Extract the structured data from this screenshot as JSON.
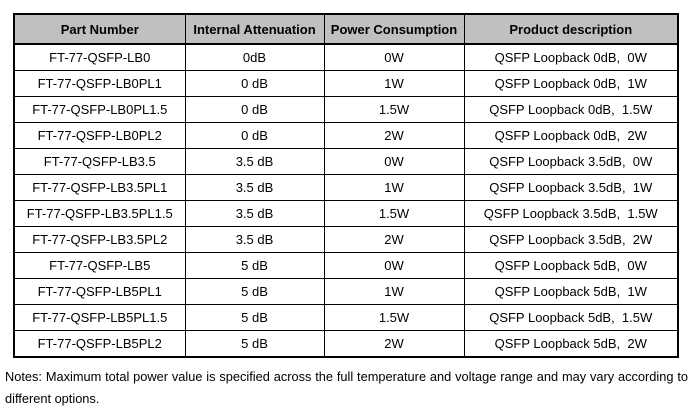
{
  "table": {
    "columns": [
      "Part Number",
      "Internal Attenuation",
      "Power Consumption",
      "Product description"
    ],
    "rows": [
      {
        "part_number": "FT-77-QSFP-LB0",
        "internal_attenuation": "0dB",
        "power_consumption": "0W",
        "description": "QSFP Loopback 0dB，0W"
      },
      {
        "part_number": "FT-77-QSFP-LB0PL1",
        "internal_attenuation": "0 dB",
        "power_consumption": "1W",
        "description": "QSFP Loopback 0dB，1W"
      },
      {
        "part_number": "FT-77-QSFP-LB0PL1.5",
        "internal_attenuation": "0 dB",
        "power_consumption": "1.5W",
        "description": "QSFP Loopback 0dB，1.5W"
      },
      {
        "part_number": "FT-77-QSFP-LB0PL2",
        "internal_attenuation": "0 dB",
        "power_consumption": "2W",
        "description": "QSFP Loopback 0dB，2W"
      },
      {
        "part_number": "FT-77-QSFP-LB3.5",
        "internal_attenuation": "3.5 dB",
        "power_consumption": "0W",
        "description": "QSFP Loopback 3.5dB，0W"
      },
      {
        "part_number": "FT-77-QSFP-LB3.5PL1",
        "internal_attenuation": "3.5 dB",
        "power_consumption": "1W",
        "description": "QSFP Loopback 3.5dB，1W"
      },
      {
        "part_number": "FT-77-QSFP-LB3.5PL1.5",
        "internal_attenuation": "3.5 dB",
        "power_consumption": "1.5W",
        "description": "QSFP Loopback 3.5dB，1.5W"
      },
      {
        "part_number": "FT-77-QSFP-LB3.5PL2",
        "internal_attenuation": "3.5 dB",
        "power_consumption": "2W",
        "description": "QSFP Loopback 3.5dB，2W"
      },
      {
        "part_number": "FT-77-QSFP-LB5",
        "internal_attenuation": "5 dB",
        "power_consumption": "0W",
        "description": "QSFP Loopback 5dB，0W"
      },
      {
        "part_number": "FT-77-QSFP-LB5PL1",
        "internal_attenuation": "5 dB",
        "power_consumption": "1W",
        "description": "QSFP Loopback 5dB，1W"
      },
      {
        "part_number": "FT-77-QSFP-LB5PL1.5",
        "internal_attenuation": "5 dB",
        "power_consumption": "1.5W",
        "description": "QSFP Loopback 5dB，1.5W"
      },
      {
        "part_number": "FT-77-QSFP-LB5PL2",
        "internal_attenuation": "5 dB",
        "power_consumption": "2W",
        "description": "QSFP Loopback 5dB，2W"
      }
    ]
  },
  "notes": "Notes: Maximum total power value is specified across the full temperature and voltage range and may vary according to different options.",
  "colors": {
    "header_background": "#c0c0c0",
    "border": "#000000",
    "text": "#000000",
    "page_background": "#ffffff"
  }
}
